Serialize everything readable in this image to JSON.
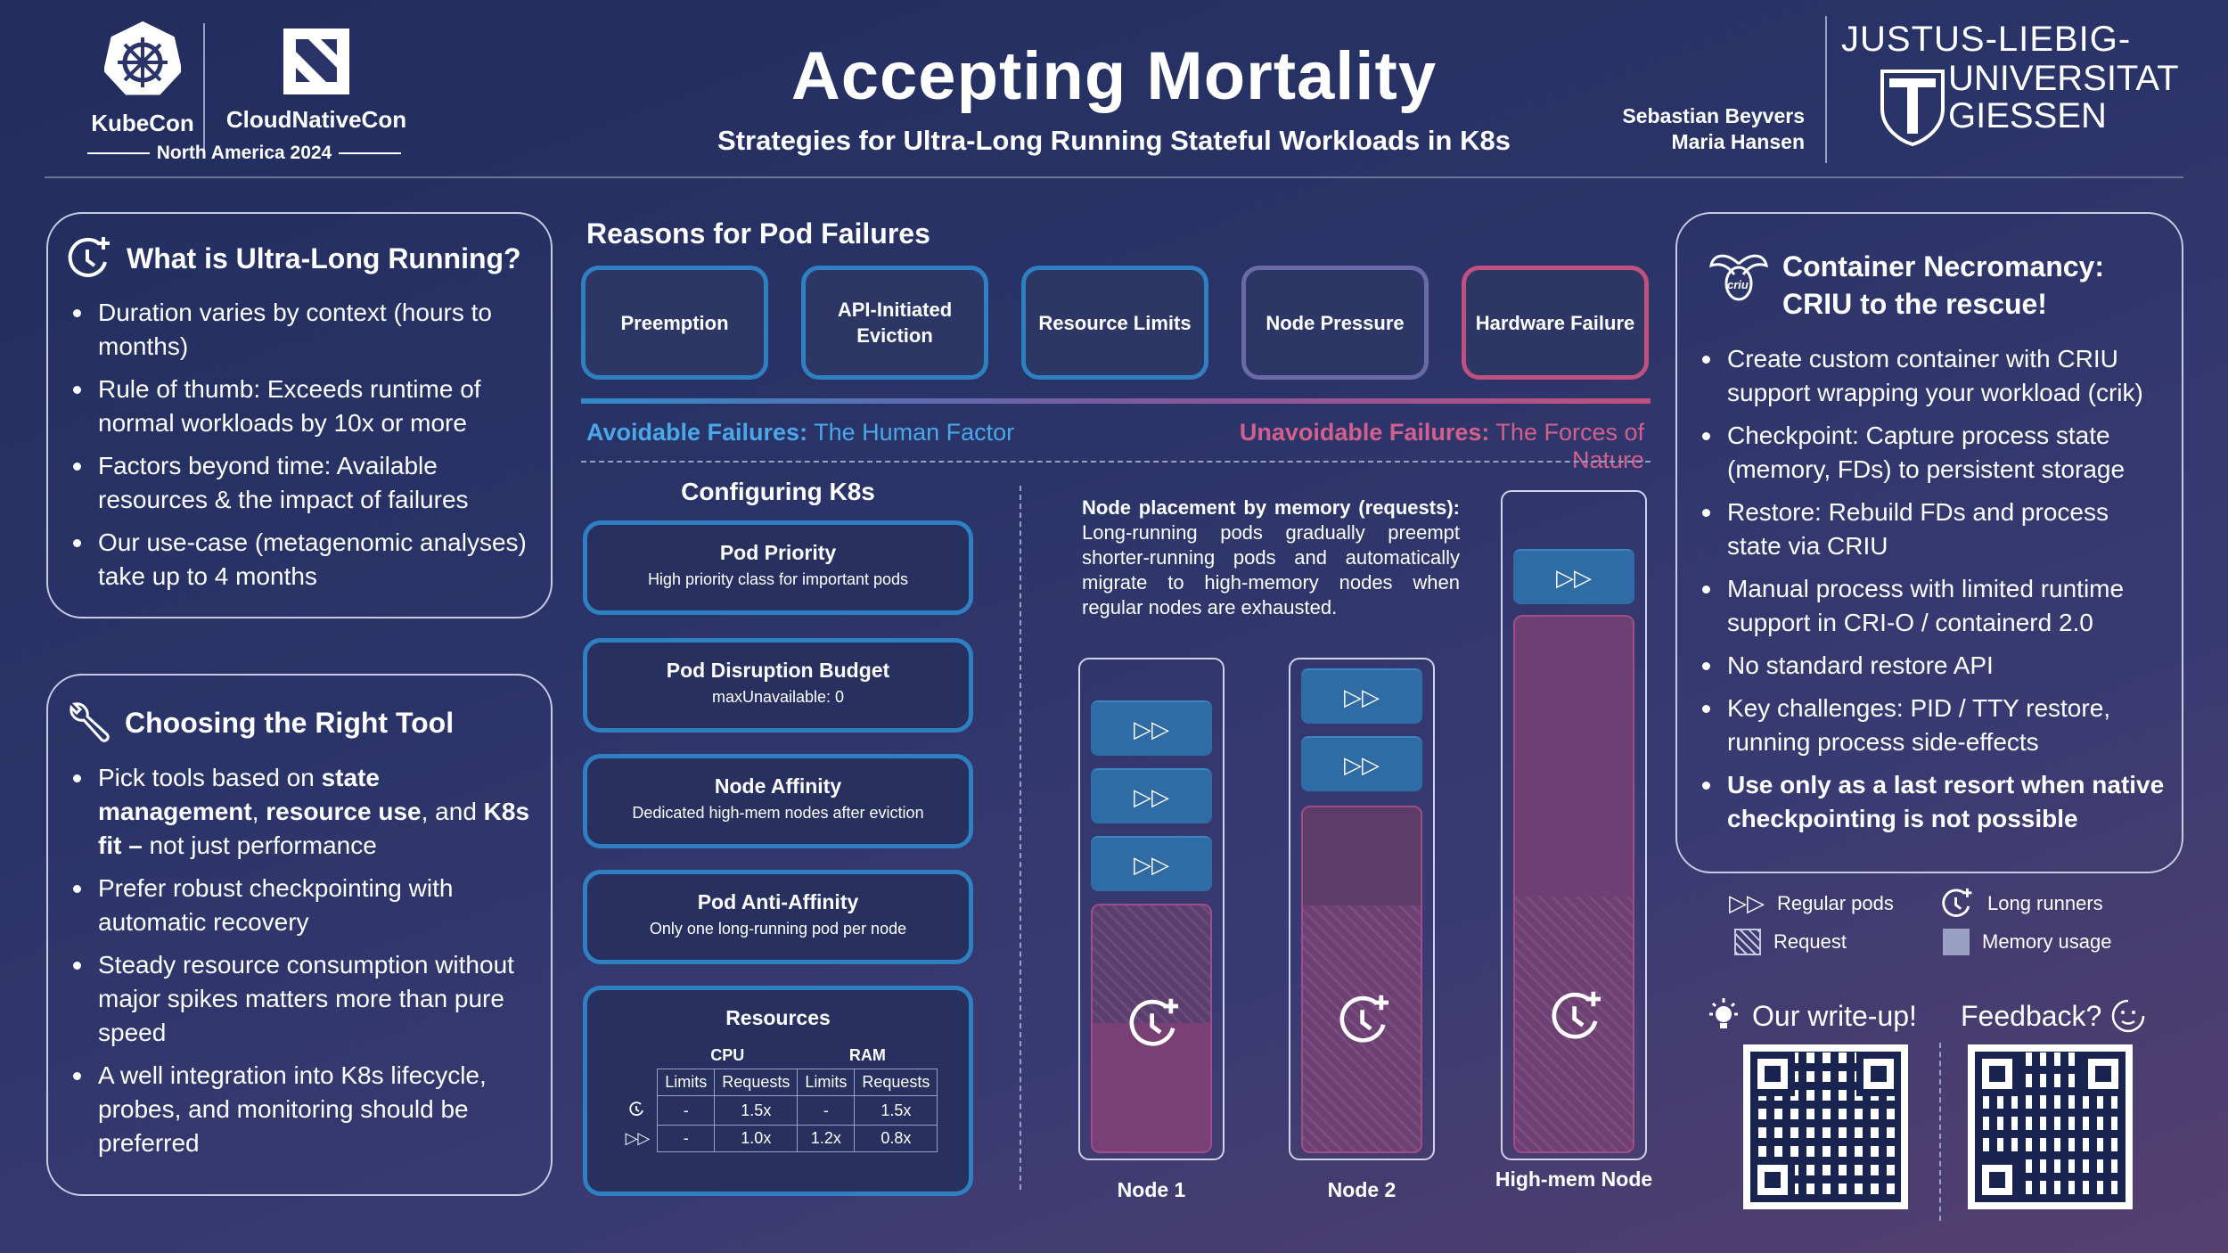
{
  "header": {
    "kubecon": "KubeCon",
    "cloudnativecon": "CloudNativeCon",
    "edition": "North America 2024",
    "title": "Accepting Mortality",
    "subtitle": "Strategies for Ultra-Long Running Stateful Workloads in K8s",
    "author1": "Sebastian Beyvers",
    "author2": "Maria Hansen",
    "uni_line1": "JUSTUS-LIEBIG-",
    "uni_line2": "UNIVERSITAT",
    "uni_line3": "GIESSEN"
  },
  "ultra": {
    "title": "What is Ultra-Long Running?",
    "items": [
      "Duration varies by context (hours to months)",
      "Rule of thumb: Exceeds runtime of normal workloads by 10x or more",
      "Factors beyond time: Available resources & the impact of failures",
      "Our use-case (metagenomic analyses) take up to 4 months"
    ]
  },
  "tool": {
    "title": "Choosing the Right Tool",
    "item1_a": "Pick tools based on ",
    "item1_b": "state management",
    "item1_c": ", ",
    "item1_d": "resource use",
    "item1_e": ", and ",
    "item1_f": "K8s fit –",
    "item1_g": " not just performance",
    "items": [
      "Prefer robust checkpointing with automatic recovery",
      "Steady resource consumption without major spikes matters more than pure speed",
      "A well integration into K8s lifecycle, probes, and monitoring should be preferred"
    ]
  },
  "reasons": {
    "title": "Reasons for Pod Failures",
    "items": [
      "Preemption",
      "API-Initiated Eviction",
      "Resource Limits",
      "Node Pressure",
      "Hardware Failure"
    ],
    "colors": [
      "#2f80c2",
      "#2f80c2",
      "#2f80c2",
      "#6a6aa8",
      "#c0507e"
    ],
    "avoid_bold": "Avoidable Failures:",
    "avoid_text": " The Human Factor",
    "unavoid_bold": "Unavoidable Failures:",
    "unavoid_text": " The Forces of Nature"
  },
  "config": {
    "title": "Configuring K8s",
    "items": [
      {
        "t": "Pod Priority",
        "d": "High priority class for important pods"
      },
      {
        "t": "Pod Disruption Budget",
        "d": "maxUnavailable: 0"
      },
      {
        "t": "Node Affinity",
        "d": "Dedicated high-mem nodes after eviction"
      },
      {
        "t": "Pod Anti-Affinity",
        "d": "Only one long-running pod per node"
      }
    ],
    "resources": {
      "title": "Resources",
      "cpu": "CPU",
      "ram": "RAM",
      "cols": [
        "Limits",
        "Requests",
        "Limits",
        "Requests"
      ],
      "rows": [
        {
          "icon": "long-runner-icon",
          "vals": [
            "-",
            "1.5x",
            "-",
            "1.5x"
          ]
        },
        {
          "icon": "regular-pod-icon",
          "vals": [
            "-",
            "1.0x",
            "1.2x",
            "0.8x"
          ]
        }
      ]
    }
  },
  "placement": {
    "bold": "Node placement by memory (requests):",
    "text": "Long-running pods gradually preempt shorter-running pods and automatically migrate to high-memory nodes when regular nodes are exhausted.",
    "nodes": [
      "Node 1",
      "Node 2",
      "High-mem Node"
    ]
  },
  "criu": {
    "title1": "Container Necromancy:",
    "title2": "CRIU to the rescue!",
    "items": [
      "Create custom container with CRIU support wrapping your workload (crik)",
      "Checkpoint: Capture process state (memory, FDs) to persistent storage",
      "Restore: Rebuild FDs and process state via CRIU",
      "Manual process with limited runtime support in CRI-O / containerd 2.0",
      "No standard restore API",
      "Key challenges: PID / TTY restore, running process side-effects"
    ],
    "last": "Use only  as a last resort when native checkpointing is not possible"
  },
  "legend": {
    "regular": "Regular pods",
    "long": "Long runners",
    "request": "Request",
    "memory": "Memory usage"
  },
  "footer": {
    "writeup": "Our write-up!",
    "feedback": "Feedback?"
  }
}
